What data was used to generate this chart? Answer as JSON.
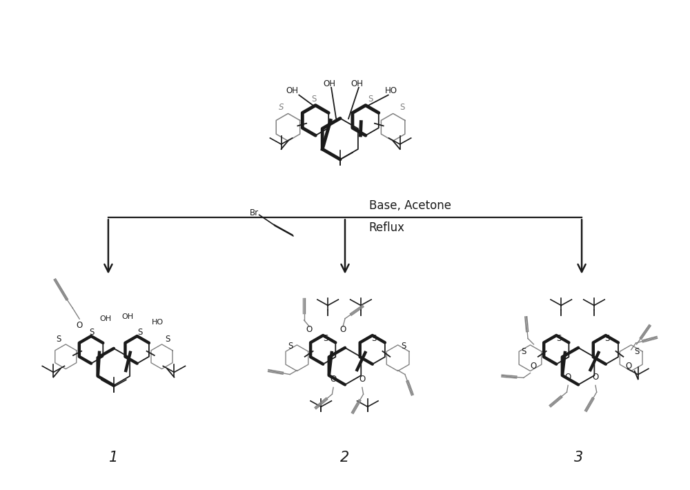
{
  "background_color": "#ffffff",
  "line_color": "#1a1a1a",
  "gray_color": "#808080",
  "reaction_conditions_line1": "Base, Acetone",
  "reaction_conditions_line2": "Reflux",
  "reagent_label": "Br",
  "compound_labels": [
    "1",
    "2",
    "3"
  ],
  "arrow_color": "#1a1a1a",
  "text_fontsize": 12,
  "label_fontsize": 15,
  "figsize": [
    10.0,
    7.1
  ],
  "dpi": 100,
  "xlim": [
    0,
    10
  ],
  "ylim": [
    0,
    7.1
  ]
}
